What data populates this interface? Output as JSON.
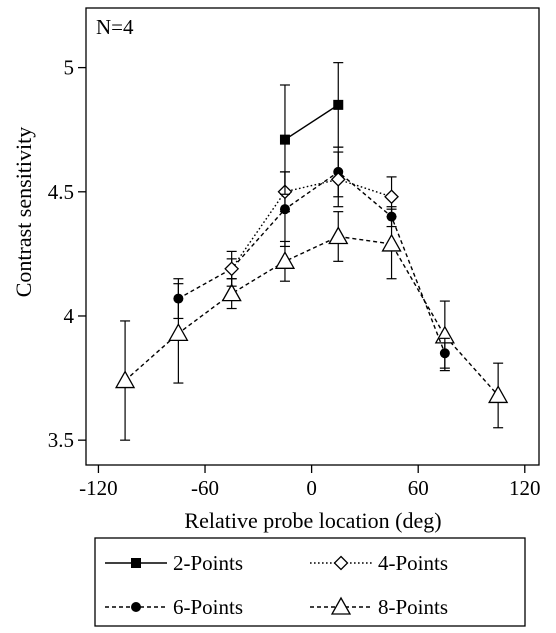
{
  "chart_data": {
    "type": "line",
    "annotation": "N=4",
    "xlabel": "Relative probe location (deg)",
    "ylabel": "Contrast sensitivity",
    "xlim": [
      -127,
      128
    ],
    "ylim": [
      3.4,
      5.24
    ],
    "xticks": [
      -120,
      -60,
      0,
      60,
      120
    ],
    "yticks": [
      3.5,
      4,
      4.5,
      5
    ],
    "ytick_labels": [
      "3.5",
      "4",
      "4.5",
      "5"
    ],
    "grid": false,
    "legend_position": "bottom-outside",
    "series": [
      {
        "name": "2-Points",
        "marker": "filled-square",
        "line": "solid",
        "color": "#000000",
        "x": [
          -15,
          15
        ],
        "y": [
          4.71,
          4.85
        ],
        "err": [
          0.22,
          0.17
        ]
      },
      {
        "name": "4-Points",
        "marker": "open-diamond",
        "line": "dotted",
        "color": "#000000",
        "x": [
          -45,
          -15,
          15,
          45
        ],
        "y": [
          4.19,
          4.5,
          4.55,
          4.48
        ],
        "err": [
          0.07,
          0.08,
          0.11,
          0.08
        ]
      },
      {
        "name": "6-Points",
        "marker": "filled-circle",
        "line": "dashed",
        "color": "#000000",
        "x": [
          -75,
          -45,
          -15,
          15,
          45,
          75
        ],
        "y": [
          4.07,
          4.19,
          4.43,
          4.58,
          4.4,
          3.85
        ],
        "err": [
          0.08,
          0.04,
          0.15,
          0.1,
          0.04,
          0.06
        ]
      },
      {
        "name": "8-Points",
        "marker": "open-triangle",
        "line": "dashed",
        "color": "#000000",
        "x": [
          -105,
          -75,
          -45,
          -15,
          15,
          45,
          75,
          105
        ],
        "y": [
          3.74,
          3.93,
          4.09,
          4.22,
          4.32,
          4.29,
          3.92,
          3.68
        ],
        "err": [
          0.24,
          0.2,
          0.06,
          0.08,
          0.1,
          0.14,
          0.14,
          0.13
        ]
      }
    ]
  }
}
